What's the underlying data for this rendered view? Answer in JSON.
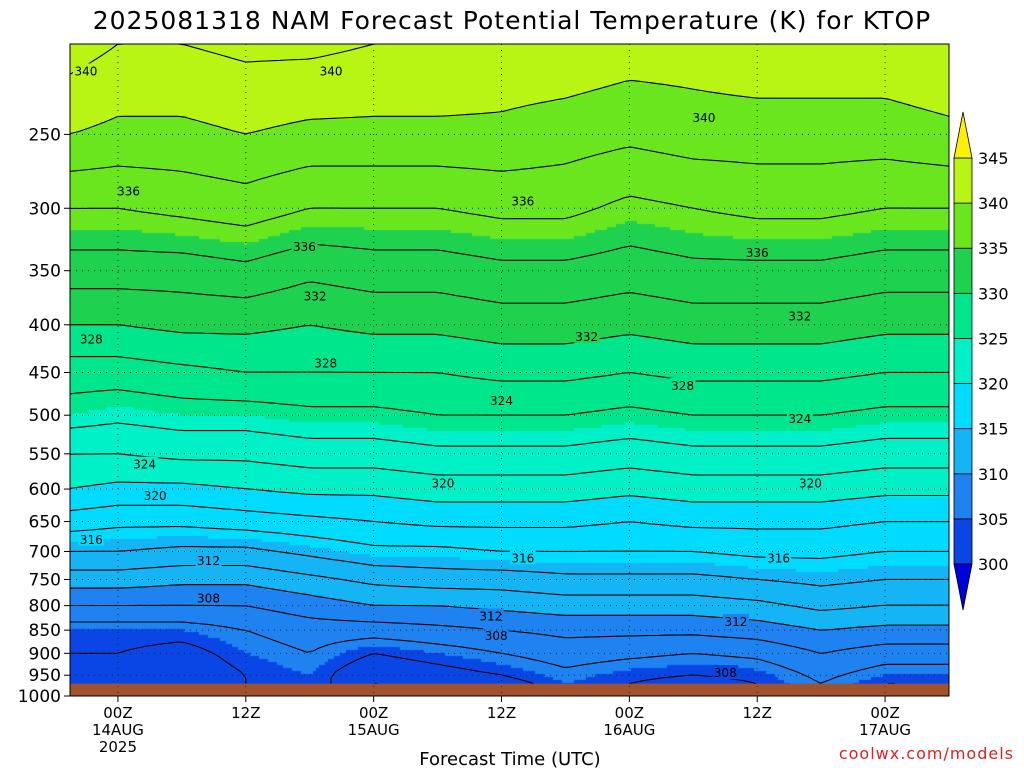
{
  "chart_data": {
    "type": "contour",
    "title": "2025081318 NAM Forecast Potential Temperature (K) for KTOP",
    "xlabel": "Forecast Time (UTC)",
    "ylabel": "",
    "y_scale": "log",
    "y_inverted": true,
    "y_ticks": [
      250,
      300,
      350,
      400,
      450,
      500,
      550,
      600,
      650,
      700,
      750,
      800,
      850,
      900,
      950,
      1000
    ],
    "y_range": [
      200,
      1000
    ],
    "ground_pressure": 970,
    "x_range_hours": [
      -4.5,
      78
    ],
    "x_ticks": [
      {
        "hours": 0,
        "lines": [
          "00Z",
          "14AUG",
          "2025"
        ]
      },
      {
        "hours": 12,
        "lines": [
          "12Z"
        ]
      },
      {
        "hours": 24,
        "lines": [
          "00Z",
          "15AUG"
        ]
      },
      {
        "hours": 36,
        "lines": [
          "12Z"
        ]
      },
      {
        "hours": 48,
        "lines": [
          "00Z",
          "16AUG"
        ]
      },
      {
        "hours": 60,
        "lines": [
          "12Z"
        ]
      },
      {
        "hours": 72,
        "lines": [
          "00Z",
          "17AUG"
        ]
      }
    ],
    "grid": true,
    "legend": {
      "position": "right",
      "levels": [
        300,
        305,
        310,
        315,
        320,
        325,
        330,
        335,
        340,
        345
      ],
      "band_colors": [
        "#0000dc",
        "#0a46e6",
        "#1e82f0",
        "#14b4f5",
        "#00dcff",
        "#00f0c8",
        "#00e68c",
        "#1ed250",
        "#69e61e",
        "#b9f514",
        "#fff000"
      ],
      "labels": [
        "345",
        "340",
        "335",
        "330",
        "325",
        "320",
        "315",
        "310",
        "305",
        "300"
      ]
    },
    "contour_levels": [
      302,
      304,
      306,
      308,
      310,
      312,
      314,
      316,
      318,
      320,
      322,
      324,
      326,
      328,
      330,
      332,
      334,
      336,
      338,
      340,
      342
    ],
    "contour_labels": [
      {
        "text": "340",
        "hours": -3.0,
        "p": 214
      },
      {
        "text": "340",
        "hours": 20.0,
        "p": 214
      },
      {
        "text": "340",
        "hours": 55.0,
        "p": 240
      },
      {
        "text": "336",
        "hours": 1.0,
        "p": 288
      },
      {
        "text": "336",
        "hours": 17.5,
        "p": 330
      },
      {
        "text": "336",
        "hours": 38.0,
        "p": 295
      },
      {
        "text": "336",
        "hours": 60.0,
        "p": 335
      },
      {
        "text": "332",
        "hours": 18.5,
        "p": 373
      },
      {
        "text": "332",
        "hours": 44.0,
        "p": 412
      },
      {
        "text": "332",
        "hours": 64.0,
        "p": 392
      },
      {
        "text": "328",
        "hours": -2.5,
        "p": 415
      },
      {
        "text": "328",
        "hours": 19.5,
        "p": 440
      },
      {
        "text": "328",
        "hours": 53.0,
        "p": 465
      },
      {
        "text": "324",
        "hours": 2.5,
        "p": 565
      },
      {
        "text": "324",
        "hours": 36.0,
        "p": 483
      },
      {
        "text": "324",
        "hours": 64.0,
        "p": 505
      },
      {
        "text": "320",
        "hours": 3.5,
        "p": 610
      },
      {
        "text": "320",
        "hours": 30.5,
        "p": 592
      },
      {
        "text": "320",
        "hours": 65.0,
        "p": 592
      },
      {
        "text": "316",
        "hours": -2.5,
        "p": 680
      },
      {
        "text": "316",
        "hours": 38.0,
        "p": 712
      },
      {
        "text": "316",
        "hours": 62.0,
        "p": 712
      },
      {
        "text": "312",
        "hours": 8.5,
        "p": 717
      },
      {
        "text": "312",
        "hours": 35.0,
        "p": 822
      },
      {
        "text": "312",
        "hours": 58.0,
        "p": 833
      },
      {
        "text": "308",
        "hours": 8.5,
        "p": 786
      },
      {
        "text": "308",
        "hours": 35.5,
        "p": 862
      },
      {
        "text": "308",
        "hours": 57.0,
        "p": 945
      }
    ],
    "profile_pressures": [
      200,
      250,
      300,
      350,
      400,
      450,
      500,
      550,
      600,
      650,
      700,
      750,
      800,
      850,
      900,
      950,
      970
    ],
    "profiles": [
      {
        "hours": -4.5,
        "theta": [
          343,
          340,
          336,
          333,
          330,
          327,
          325,
          322,
          320,
          317,
          314,
          311,
          308,
          305,
          304,
          303,
          303
        ]
      },
      {
        "hours": 0,
        "theta": [
          342,
          339.5,
          336,
          333,
          330,
          327,
          324.5,
          322,
          319.5,
          316.5,
          314,
          311,
          308,
          305,
          304,
          303,
          303
        ]
      },
      {
        "hours": 6,
        "theta": [
          342,
          339.5,
          336.5,
          333,
          330.5,
          327.5,
          325,
          322.5,
          319.5,
          316.5,
          313.5,
          310.5,
          308,
          305,
          303,
          302,
          302
        ]
      },
      {
        "hours": 12,
        "theta": [
          342.5,
          340,
          337,
          333.5,
          330.5,
          328,
          325,
          322.5,
          320,
          317,
          313.5,
          310.5,
          308,
          306,
          305,
          304,
          304
        ]
      },
      {
        "hours": 18,
        "theta": [
          342.5,
          339.5,
          336,
          332.5,
          330,
          328,
          325.5,
          323,
          320.5,
          317.5,
          314.5,
          311.5,
          309,
          307,
          306,
          305,
          305
        ]
      },
      {
        "hours": 24,
        "theta": [
          342,
          339.5,
          336,
          333,
          330.5,
          328,
          325.5,
          323,
          320.5,
          318,
          315.5,
          312.5,
          310,
          307,
          304,
          302,
          302
        ]
      },
      {
        "hours": 30,
        "theta": [
          342,
          339.5,
          336,
          333,
          330.5,
          328,
          326,
          323.5,
          321,
          318.5,
          315.5,
          313,
          310,
          307.5,
          305,
          303,
          302
        ]
      },
      {
        "hours": 36,
        "theta": [
          341.5,
          339.5,
          336.5,
          333.5,
          331,
          328.5,
          326,
          323.5,
          321,
          318.5,
          316,
          313,
          310.5,
          308,
          306,
          304,
          303
        ]
      },
      {
        "hours": 42,
        "theta": [
          341.5,
          339,
          336.5,
          333.5,
          331,
          328.5,
          326,
          323.5,
          321,
          318.5,
          316,
          313.5,
          311,
          308.5,
          307,
          305.5,
          305
        ]
      },
      {
        "hours": 48,
        "theta": [
          341,
          338.5,
          335.5,
          333,
          330.5,
          328,
          325.5,
          323,
          320.5,
          318,
          316,
          313.5,
          311,
          308.5,
          306.5,
          304.5,
          304
        ]
      },
      {
        "hours": 54,
        "theta": [
          341,
          339,
          336,
          333.5,
          331,
          328.5,
          326,
          323.5,
          321,
          318.5,
          316,
          313.5,
          311,
          308.5,
          306,
          304,
          303
        ]
      },
      {
        "hours": 60,
        "theta": [
          341.5,
          339,
          336.5,
          333.5,
          331,
          328.5,
          326,
          323.5,
          321,
          318.5,
          316.5,
          314,
          311.5,
          309,
          306.5,
          304.5,
          304
        ]
      },
      {
        "hours": 66,
        "theta": [
          341.5,
          339,
          336.5,
          333.5,
          331,
          328.5,
          326,
          323.5,
          321,
          318.5,
          316.5,
          314.5,
          312.5,
          310,
          308,
          306.5,
          306
        ]
      },
      {
        "hours": 72,
        "theta": [
          341.5,
          339,
          336,
          333,
          330.5,
          328,
          325.5,
          323,
          320.5,
          318,
          316,
          314,
          312,
          309.5,
          307,
          305,
          304
        ]
      },
      {
        "hours": 78,
        "theta": [
          342,
          339.5,
          336,
          333,
          330.5,
          328,
          325.5,
          323,
          320.5,
          318,
          316,
          314,
          312,
          309.5,
          307,
          305,
          304
        ]
      }
    ]
  },
  "credit": "coolwx.com/models"
}
